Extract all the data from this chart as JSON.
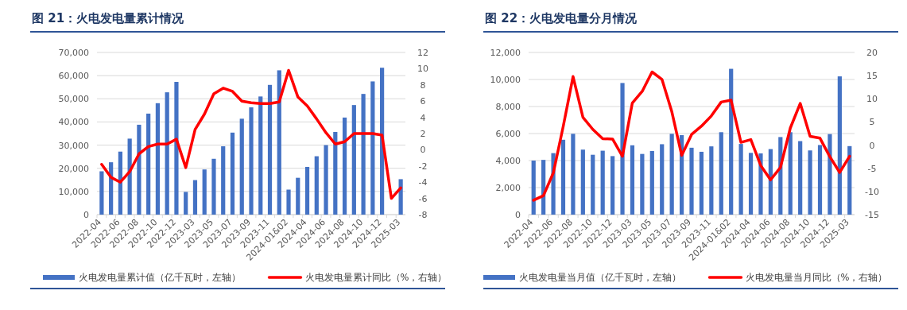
{
  "chart_data": [
    {
      "type": "bar",
      "title": "图 21：火电发电量累计情况",
      "categories": [
        "2022-04",
        null,
        "2022-06",
        null,
        "2022-08",
        null,
        "2022-10",
        null,
        "2022-12",
        null,
        "2023-03",
        null,
        "2023-05",
        null,
        "2023-07",
        null,
        "2023-09",
        null,
        "2023-11",
        null,
        "2024-01&02",
        null,
        "2024-04",
        null,
        "2024-06",
        null,
        "2024-08",
        null,
        "2024-10",
        null,
        "2024-12",
        null,
        "2025-03"
      ],
      "series": [
        {
          "name": "火电发电量累计值（亿千瓦时，左轴）",
          "color": "#4472c4",
          "values": [
            18700,
            22600,
            27200,
            32800,
            38800,
            43600,
            48100,
            52800,
            57300,
            9800,
            14900,
            19500,
            24100,
            29500,
            35400,
            41400,
            46300,
            51000,
            56000,
            62300,
            10800,
            15900,
            20600,
            25200,
            30000,
            35700,
            41900,
            47300,
            52100,
            57500,
            63400,
            null,
            15300
          ]
        },
        {
          "name": "火电发电量累计同比（%，右轴）",
          "type": "line",
          "axis": "y2",
          "color": "#ff0000",
          "values": [
            -1.8,
            -3.4,
            -4.0,
            -2.7,
            -0.5,
            0.4,
            0.7,
            0.7,
            1.3,
            -2.2,
            2.5,
            4.4,
            6.9,
            7.6,
            7.2,
            6.0,
            5.8,
            5.7,
            5.7,
            5.9,
            9.8,
            6.5,
            5.4,
            3.8,
            2.1,
            0.7,
            1.0,
            2.0,
            2.0,
            2.0,
            1.8,
            -6.0,
            -4.7
          ]
        }
      ],
      "ylim": [
        0,
        70000
      ],
      "yticks": [
        0,
        {
          "value": 10000,
          "label": "10,000"
        },
        {
          "value": 20000,
          "label": "20,000"
        },
        {
          "value": 30000,
          "label": "30,000"
        },
        {
          "value": 40000,
          "label": "40,000"
        },
        {
          "value": 50000,
          "label": "50,000"
        },
        {
          "value": 60000,
          "label": "60,000"
        },
        {
          "value": 70000,
          "label": "70,000"
        }
      ],
      "y2lim": [
        -8,
        12
      ],
      "y2ticks": [
        -8,
        -6,
        -4,
        -2,
        0,
        2,
        4,
        6,
        8,
        10,
        12
      ],
      "grid": "y",
      "legend": "bottom"
    },
    {
      "type": "bar",
      "title": "图 22：火电发电量分月情况",
      "categories": [
        "2022-04",
        null,
        "2022-06",
        null,
        "2022-08",
        null,
        "2022-10",
        null,
        "2022-12",
        null,
        "2023-03",
        null,
        "2023-05",
        null,
        "2023-07",
        null,
        "2023-09",
        null,
        "2023-11",
        null,
        "2024-01&02",
        null,
        "2024-04",
        null,
        "2024-06",
        null,
        "2024-08",
        null,
        "2024-10",
        null,
        "2024-12",
        null,
        "2025-03"
      ],
      "series": [
        {
          "name": "火电发电量当月值（亿千瓦时，左轴）",
          "color": "#4472c4",
          "values": [
            4000,
            4050,
            4550,
            5540,
            5980,
            4810,
            4430,
            4730,
            4330,
            9740,
            5130,
            4490,
            4710,
            5210,
            5980,
            5880,
            4950,
            4650,
            5050,
            6100,
            10790,
            5230,
            4570,
            4530,
            4850,
            5740,
            6100,
            5440,
            4750,
            5150,
            5960,
            10230,
            5070
          ]
        },
        {
          "name": "火电发电量当月同比（%，右轴）",
          "type": "line",
          "axis": "y2",
          "color": "#ff0000",
          "values": [
            -11.9,
            -10.9,
            -6.0,
            4.0,
            14.8,
            6.0,
            3.4,
            1.4,
            1.3,
            -2.4,
            9.1,
            11.6,
            15.8,
            14.2,
            7.2,
            -2.2,
            2.3,
            4.1,
            6.3,
            9.3,
            9.7,
            0.6,
            1.2,
            -4.4,
            -7.5,
            -4.8,
            3.7,
            9.0,
            1.9,
            1.5,
            -2.5,
            -5.9,
            -2.4
          ]
        }
      ],
      "ylim": [
        0,
        12000
      ],
      "yticks": [
        0,
        {
          "value": 2000,
          "label": "2,000"
        },
        {
          "value": 4000,
          "label": "4,000"
        },
        {
          "value": 6000,
          "label": "6,000"
        },
        {
          "value": 8000,
          "label": "8,000"
        },
        {
          "value": 10000,
          "label": "10,000"
        },
        {
          "value": 12000,
          "label": "12,000"
        }
      ],
      "y2lim": [
        -15,
        20
      ],
      "y2ticks": [
        -15,
        -10,
        -5,
        0,
        5,
        10,
        15,
        20
      ],
      "grid": "y",
      "legend": "bottom"
    }
  ]
}
